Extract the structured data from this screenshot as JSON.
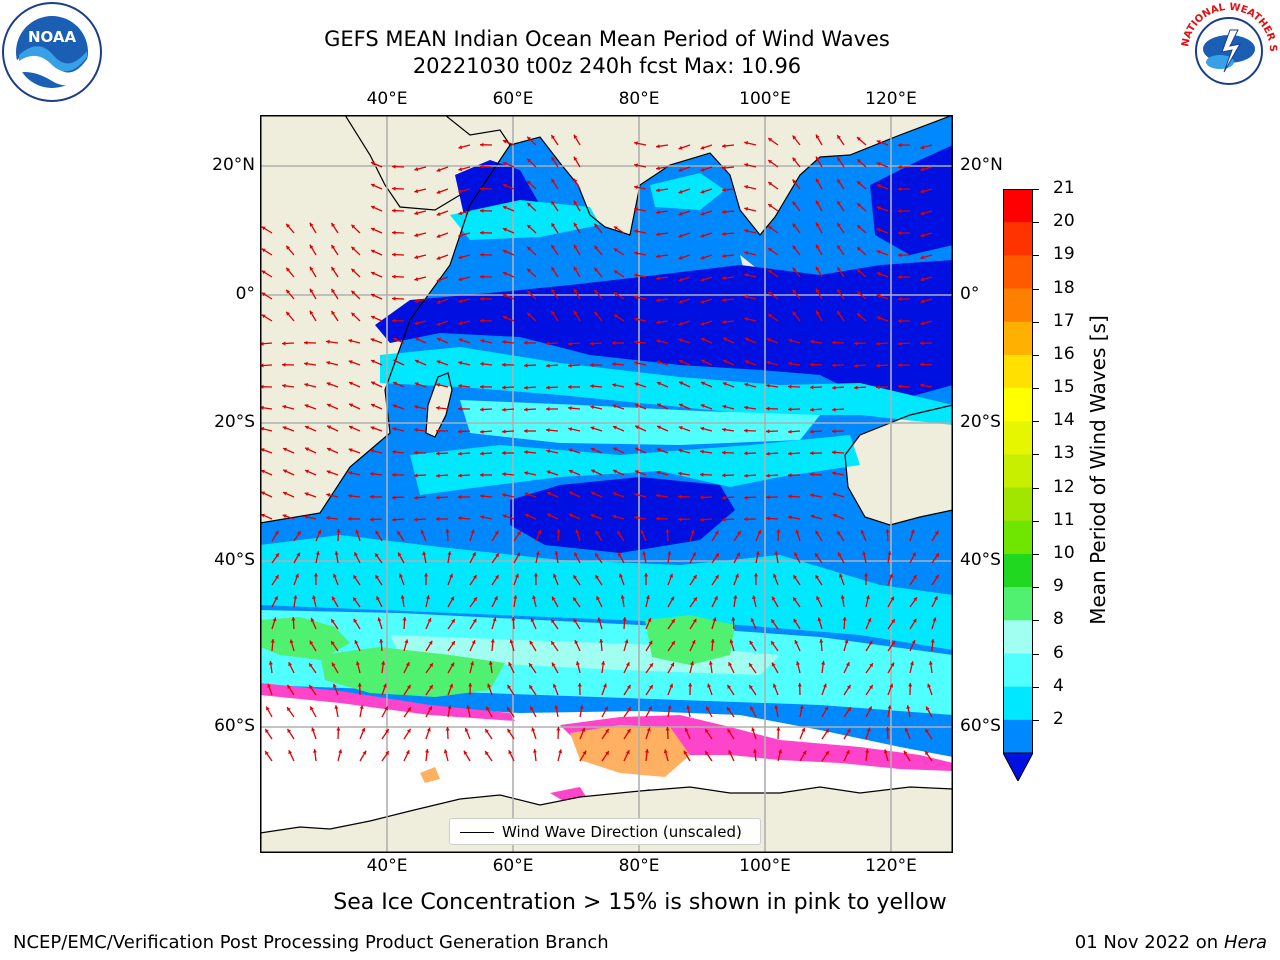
{
  "title": {
    "line1": "GEFS MEAN Indian Ocean Mean Period of Wind Waves",
    "line2": "20221030 t00z 240h fcst   Max: 10.96"
  },
  "axes": {
    "lon_ticks": [
      "40°E",
      "60°E",
      "80°E",
      "100°E",
      "120°E"
    ],
    "lat_ticks": [
      "20°N",
      "0°",
      "20°S",
      "40°S",
      "60°S"
    ]
  },
  "colorbar": {
    "label": "Mean Period of Wind Waves [s]",
    "ticks": [
      "21",
      "20",
      "19",
      "18",
      "17",
      "16",
      "15",
      "14",
      "13",
      "12",
      "11",
      "10",
      "9",
      "8",
      "6",
      "4",
      "2"
    ],
    "colors": [
      "#ff0000",
      "#ff3300",
      "#ff5a00",
      "#ff8000",
      "#ffb000",
      "#ffe000",
      "#ffff00",
      "#e6f500",
      "#c8ee00",
      "#a0e600",
      "#6ee600",
      "#20d820",
      "#50f070",
      "#a0fff0",
      "#50ffff",
      "#00e8ff",
      "#0088ff"
    ],
    "extend_color": "#0010e0"
  },
  "legend": {
    "label": "Wind Wave Direction (unscaled)"
  },
  "note": "Sea Ice Concentration > 15% is shown in pink to yellow",
  "footer": {
    "left": "NCEP/EMC/Verification Post Processing Product Generation Branch",
    "right_date": "01 Nov 2022 on",
    "right_host": "Hera"
  },
  "logos": {
    "noaa": "NOAA",
    "nws": "NATIONAL WEATHER SERVICE"
  },
  "map_colors": {
    "land": "#efeedd",
    "deep_blue": "#0010e0",
    "blue": "#0088ff",
    "cyan": "#00e8ff",
    "light_cyan": "#50ffff",
    "pale_cyan": "#a0fff0",
    "green": "#50f070",
    "ice_pink": "#ff44cc",
    "ice_orange": "#ffb060",
    "arrow": "#e00000",
    "grid": "#b0b0b0"
  }
}
